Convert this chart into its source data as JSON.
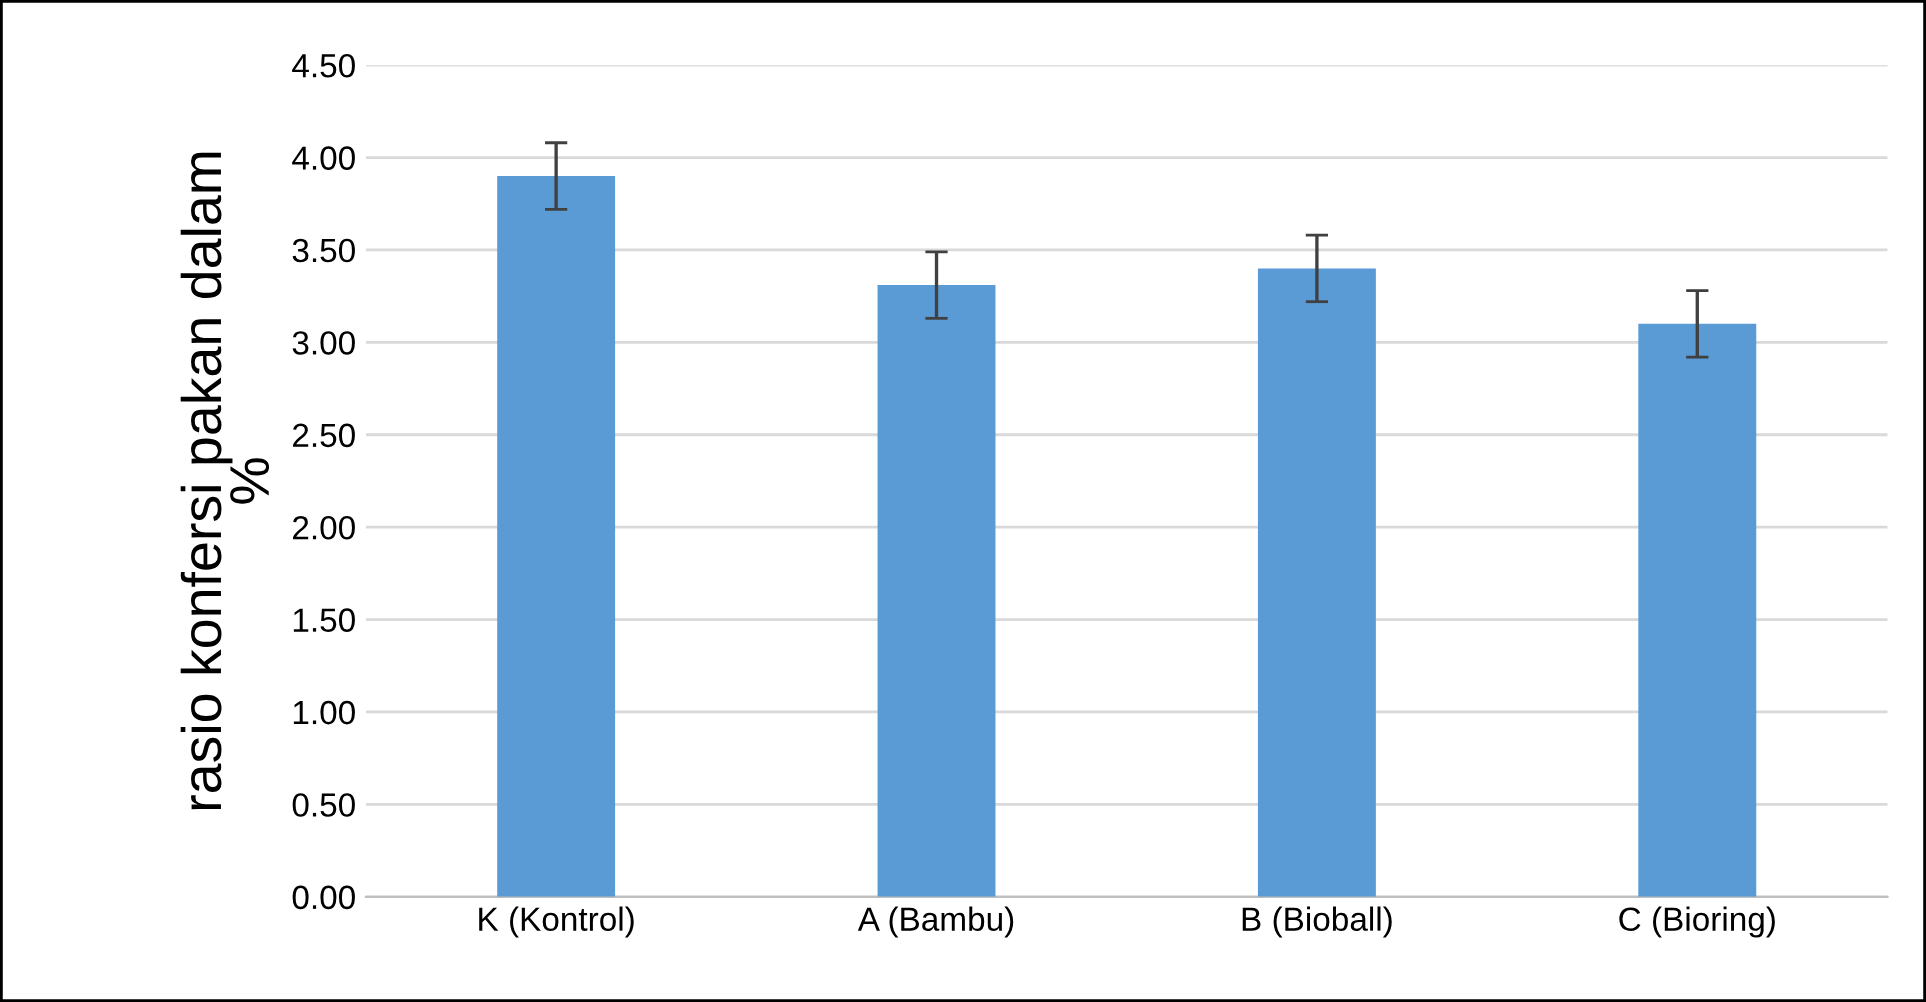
{
  "chart_data": {
    "type": "bar",
    "ylabel": "rasio konfersi pakan dalam\n%",
    "categories": [
      "K (Kontrol)",
      "A (Bambu)",
      "B (Bioball)",
      "C (Bioring)"
    ],
    "values": [
      3.9,
      3.31,
      3.4,
      3.1
    ],
    "errors": [
      0.18,
      0.18,
      0.18,
      0.18
    ],
    "color": "#5b9bd5",
    "ylim": [
      0,
      4.5
    ],
    "yticks": [
      {
        "value": 0,
        "label": "0.00"
      },
      {
        "value": 0.5,
        "label": "0.50"
      },
      {
        "value": 1,
        "label": "1.00"
      },
      {
        "value": 1.5,
        "label": "1.50"
      },
      {
        "value": 2,
        "label": "2.00"
      },
      {
        "value": 2.5,
        "label": "2.50"
      },
      {
        "value": 3,
        "label": "3.00"
      },
      {
        "value": 3.5,
        "label": "3.50"
      },
      {
        "value": 4,
        "label": "4.00"
      },
      {
        "value": 4.5,
        "label": "4.50"
      }
    ],
    "grid": "y"
  }
}
